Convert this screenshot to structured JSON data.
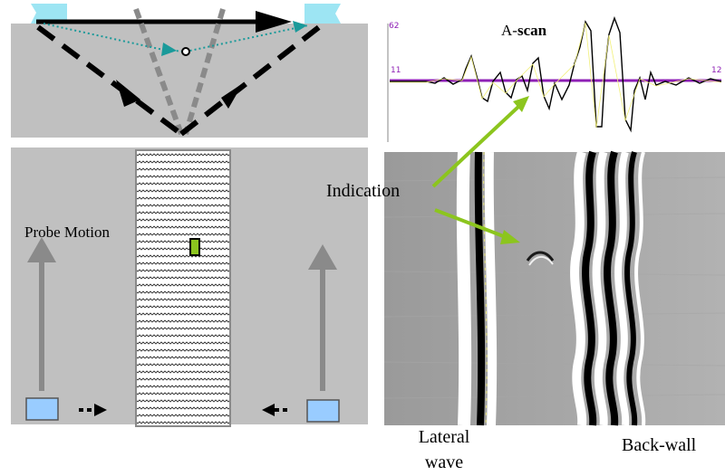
{
  "labels": {
    "ascan_prefix": "A-",
    "ascan_bold": "scan",
    "indication": "Indication",
    "probe_motion": "Probe Motion",
    "lateral_wave_line1": "Lateral",
    "lateral_wave_line2": "wave",
    "back_wall": "Back-wall",
    "ascan_tick_top": "62",
    "ascan_tick_left": "11",
    "ascan_tick_right": "12"
  },
  "colors": {
    "panel_gray": "#c0c0c0",
    "probe_cyan": "#9de5f3",
    "probe_blue": "#99ccff",
    "indication_green": "#8cc51e",
    "dotted_teal": "#1a9a9a",
    "ascan_axis": "#8e1fb5",
    "ascan_fill": "#f2f07a",
    "arrow_gray": "#8a8a8a"
  }
}
